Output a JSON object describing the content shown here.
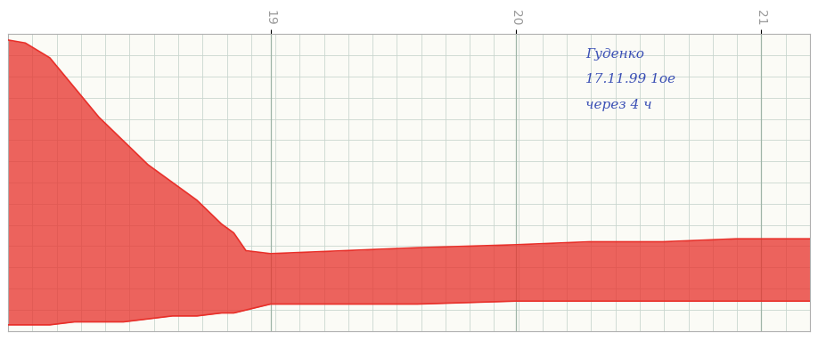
{
  "chart_data": {
    "type": "band",
    "annotations": [
      "Гуденко",
      "17.11.99 1ое",
      "через 4 ч"
    ],
    "x": [
      17.93,
      18.0,
      18.1,
      18.2,
      18.3,
      18.4,
      18.5,
      18.6,
      18.7,
      18.8,
      18.85,
      18.9,
      19.0,
      19.3,
      19.6,
      20.0,
      20.3,
      20.6,
      20.9,
      21.2
    ],
    "upper": [
      98,
      97,
      92,
      82,
      72,
      64,
      56,
      50,
      44,
      36,
      33,
      27,
      26,
      27,
      28,
      29,
      30,
      30,
      31,
      31
    ],
    "lower": [
      2,
      2,
      2,
      3,
      3,
      3,
      4,
      5,
      5,
      6,
      6,
      7,
      9,
      9,
      9,
      10,
      10,
      10,
      10,
      10
    ],
    "color": "#e8302a",
    "xlim": [
      17.93,
      21.2
    ],
    "xticks": [
      19,
      20,
      21
    ],
    "ylim": [
      0,
      100
    ],
    "yticks": [],
    "tick_labels": "x",
    "grid": true
  }
}
